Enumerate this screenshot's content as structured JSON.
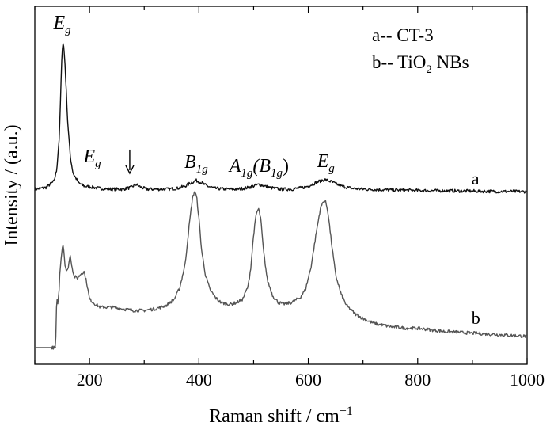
{
  "chart_data": {
    "type": "line",
    "xlabel": "Raman shift / cm",
    "xlabel_sup": "−1",
    "ylabel": "Intensity / (a.u.)",
    "xlim": [
      100,
      1000
    ],
    "xticks": [
      "200",
      "400",
      "600",
      "800",
      "1000"
    ],
    "xtick_values": [
      200,
      400,
      600,
      800,
      1000
    ],
    "y_ticks_labeled": false,
    "grid": false,
    "legend_position": "top-right",
    "legend": [
      {
        "prefix": "a-- ",
        "text": "CT-3",
        "sub": "",
        "suffix": ""
      },
      {
        "prefix": "b-- ",
        "text": "TiO",
        "sub": "2",
        "suffix": " NBs"
      }
    ],
    "series": [
      {
        "name": "a",
        "color": "#111111",
        "x": [
          100,
          120,
          135,
          140,
          145,
          148,
          150,
          152,
          155,
          160,
          165,
          170,
          180,
          190,
          200,
          210,
          220,
          240,
          260,
          275,
          285,
          295,
          305,
          320,
          340,
          360,
          375,
          385,
          395,
          405,
          415,
          430,
          450,
          470,
          490,
          500,
          510,
          520,
          530,
          550,
          570,
          590,
          600,
          610,
          620,
          630,
          640,
          650,
          660,
          680,
          700,
          750,
          800,
          850,
          900,
          950,
          1000
        ],
        "y": [
          0.02,
          0.03,
          0.07,
          0.14,
          0.36,
          0.7,
          0.9,
          0.95,
          0.82,
          0.45,
          0.22,
          0.12,
          0.06,
          0.04,
          0.035,
          0.03,
          0.025,
          0.02,
          0.02,
          0.03,
          0.05,
          0.03,
          0.02,
          0.02,
          0.02,
          0.025,
          0.04,
          0.06,
          0.075,
          0.06,
          0.04,
          0.025,
          0.02,
          0.02,
          0.03,
          0.04,
          0.05,
          0.04,
          0.03,
          0.02,
          0.02,
          0.03,
          0.04,
          0.055,
          0.07,
          0.08,
          0.07,
          0.055,
          0.04,
          0.025,
          0.02,
          0.015,
          0.012,
          0.01,
          0.008,
          0.006,
          0.005
        ]
      },
      {
        "name": "b",
        "color": "#555555",
        "x": [
          130,
          138,
          140,
          142,
          144,
          146,
          148,
          150,
          152,
          155,
          158,
          160,
          163,
          165,
          168,
          172,
          178,
          185,
          190,
          195,
          200,
          210,
          220,
          240,
          260,
          280,
          300,
          320,
          340,
          355,
          365,
          375,
          382,
          388,
          392,
          396,
          400,
          405,
          412,
          420,
          430,
          440,
          450,
          460,
          470,
          480,
          490,
          495,
          500,
          505,
          509,
          513,
          518,
          525,
          535,
          545,
          555,
          570,
          585,
          595,
          605,
          615,
          622,
          628,
          632,
          636,
          642,
          650,
          660,
          670,
          685,
          700,
          720,
          750,
          780,
          800,
          850,
          900,
          950,
          1000
        ],
        "y": [
          0.0,
          0.0,
          0.3,
          0.28,
          0.33,
          0.48,
          0.55,
          0.62,
          0.64,
          0.52,
          0.47,
          0.48,
          0.54,
          0.57,
          0.5,
          0.44,
          0.43,
          0.46,
          0.47,
          0.4,
          0.3,
          0.27,
          0.25,
          0.25,
          0.24,
          0.23,
          0.23,
          0.24,
          0.26,
          0.3,
          0.37,
          0.52,
          0.75,
          0.92,
          0.97,
          0.93,
          0.8,
          0.6,
          0.45,
          0.36,
          0.31,
          0.28,
          0.27,
          0.27,
          0.28,
          0.3,
          0.38,
          0.5,
          0.7,
          0.83,
          0.86,
          0.8,
          0.6,
          0.42,
          0.32,
          0.28,
          0.27,
          0.28,
          0.31,
          0.36,
          0.5,
          0.72,
          0.86,
          0.91,
          0.9,
          0.84,
          0.66,
          0.45,
          0.33,
          0.26,
          0.21,
          0.18,
          0.15,
          0.13,
          0.12,
          0.12,
          0.1,
          0.09,
          0.08,
          0.07
        ]
      }
    ],
    "annotations": [
      {
        "series": "a",
        "x": 150,
        "y": 0.95,
        "main": "E",
        "sub": "g",
        "after": "",
        "sub2": "",
        "close": "",
        "pos": "above"
      },
      {
        "series": "a",
        "x": 205,
        "y": 0.06,
        "main": "E",
        "sub": "g",
        "after": "",
        "sub2": "",
        "close": "",
        "pos": "above-gap"
      },
      {
        "series": "a",
        "x": 288,
        "y": 0.05,
        "main": "↓",
        "sub": "",
        "after": "",
        "sub2": "",
        "close": "",
        "pos": "arrow"
      },
      {
        "series": "a",
        "x": 395,
        "y": 0.075,
        "main": "B",
        "sub": "1g",
        "after": "",
        "sub2": "",
        "close": "",
        "pos": "above"
      },
      {
        "series": "a",
        "x": 510,
        "y": 0.05,
        "main": "A",
        "sub": "1g",
        "after": "(B",
        "sub2": "1g",
        "close": ")",
        "pos": "above"
      },
      {
        "series": "a",
        "x": 632,
        "y": 0.08,
        "main": "E",
        "sub": "g",
        "after": "",
        "sub2": "",
        "close": "",
        "pos": "above"
      }
    ],
    "curve_labels": [
      {
        "series": "a",
        "text": "a",
        "x": 855
      },
      {
        "series": "b",
        "text": "b",
        "x": 855
      }
    ]
  }
}
